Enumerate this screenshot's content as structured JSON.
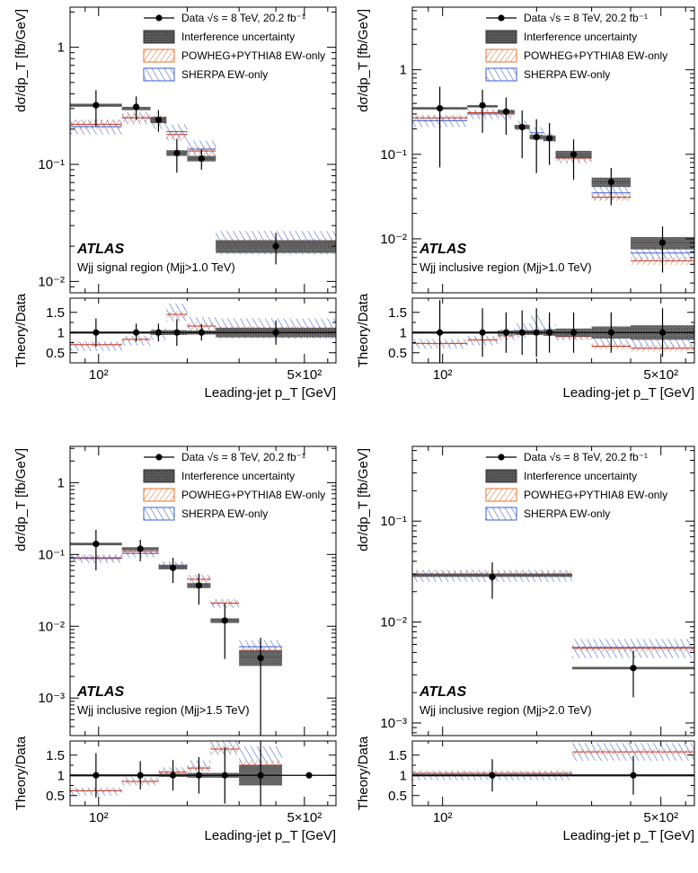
{
  "chart_data": [
    {
      "type": "histogram",
      "panel": "top-left",
      "ylabel": "dσ/dp_T [fb/GeV]",
      "xlabel": "Leading-jet p_T [GeV]",
      "ratio_ylabel": "Theory/Data",
      "xlim": [
        80,
        640
      ],
      "ylim": [
        0.008,
        2.2
      ],
      "ratio_ylim": [
        0.25,
        1.85
      ],
      "y_ticks": [
        {
          "v": 0.01,
          "label": "10⁻²"
        },
        {
          "v": 0.1,
          "label": "10⁻¹"
        },
        {
          "v": 1,
          "label": "1"
        }
      ],
      "ratio_ticks": [
        {
          "v": 0.5,
          "label": "0.5"
        },
        {
          "v": 1,
          "label": "1"
        },
        {
          "v": 1.5,
          "label": "1.5"
        }
      ],
      "x_ticks": [
        {
          "v": 100,
          "label": "10²"
        },
        {
          "v": 500,
          "label": "5×10²"
        }
      ],
      "atlas": "ATLAS",
      "region": "Wjj signal region (Mjj>1.0 TeV)",
      "legend": [
        {
          "name": "Data √s = 8 TeV, 20.2 fb⁻¹",
          "kind": "data"
        },
        {
          "name": "Interference uncertainty",
          "kind": "interference",
          "color": "#333333"
        },
        {
          "name": "POWHEG+PYTHIA8 EW-only",
          "kind": "powheg",
          "color": "#e8702a"
        },
        {
          "name": "SHERPA EW-only",
          "kind": "sherpa",
          "color": "#3a5fcd"
        }
      ],
      "bins": [
        80,
        120,
        150,
        170,
        200,
        250,
        640
      ],
      "data": [
        0.32,
        0.31,
        0.24,
        0.125,
        0.112,
        0.02
      ],
      "data_err": [
        0.11,
        0.07,
        0.05,
        0.04,
        0.022,
        0.006
      ],
      "interference": [
        0.32,
        0.3,
        0.24,
        0.125,
        0.112,
        0.02
      ],
      "interference_err": [
        0.01,
        0.01,
        0.015,
        0.007,
        0.006,
        0.0025
      ],
      "powheg": [
        0.22,
        0.25,
        0.24,
        0.18,
        0.13,
        0.021
      ],
      "powheg_err": [
        0.02,
        0.02,
        0.02,
        0.015,
        0.012,
        0.002
      ],
      "sherpa": [
        0.21,
        0.25,
        0.23,
        0.19,
        0.135,
        0.022
      ],
      "sherpa_err": [
        0.03,
        0.03,
        0.03,
        0.03,
        0.025,
        0.005
      ],
      "ratio_data_err": [
        0.35,
        0.22,
        0.22,
        0.33,
        0.2,
        0.3
      ],
      "ratio_interf_err": [
        0.03,
        0.03,
        0.06,
        0.06,
        0.05,
        0.12
      ],
      "ratio_powheg": [
        0.7,
        0.83,
        1.0,
        1.45,
        1.16,
        1.05
      ],
      "ratio_powheg_err": [
        0.05,
        0.05,
        0.06,
        0.08,
        0.08,
        0.1
      ],
      "ratio_sherpa": [
        0.66,
        0.8,
        0.96,
        1.5,
        1.2,
        1.1
      ],
      "ratio_sherpa_err": [
        0.12,
        0.12,
        0.14,
        0.22,
        0.18,
        0.25
      ]
    },
    {
      "type": "histogram",
      "panel": "top-right",
      "ylabel": "dσ/dp_T [fb/GeV]",
      "xlabel": "Leading-jet p_T [GeV]",
      "ratio_ylabel": "Theory/Data",
      "xlim": [
        80,
        640
      ],
      "ylim": [
        0.0023,
        5.5
      ],
      "ratio_ylim": [
        0.25,
        1.85
      ],
      "y_ticks": [
        {
          "v": 0.01,
          "label": "10⁻²"
        },
        {
          "v": 0.1,
          "label": "10⁻¹"
        },
        {
          "v": 1,
          "label": "1"
        }
      ],
      "ratio_ticks": [
        {
          "v": 0.5,
          "label": "0.5"
        },
        {
          "v": 1,
          "label": "1"
        },
        {
          "v": 1.5,
          "label": "1.5"
        }
      ],
      "x_ticks": [
        {
          "v": 100,
          "label": "10²"
        },
        {
          "v": 500,
          "label": "5×10²"
        }
      ],
      "atlas": "ATLAS",
      "region": "Wjj inclusive region (Mjj>1.0 TeV)",
      "legend": [
        {
          "name": "Data √s = 8 TeV, 20.2 fb⁻¹",
          "kind": "data"
        },
        {
          "name": "Interference uncertainty",
          "kind": "interference",
          "color": "#333333"
        },
        {
          "name": "POWHEG+PYTHIA8 EW-only",
          "kind": "powheg",
          "color": "#e8702a"
        },
        {
          "name": "SHERPA EW-only",
          "kind": "sherpa",
          "color": "#3a5fcd"
        }
      ],
      "bins": [
        80,
        120,
        150,
        170,
        190,
        210,
        230,
        300,
        400,
        640
      ],
      "data": [
        0.35,
        0.38,
        0.32,
        0.21,
        0.16,
        0.155,
        0.1,
        0.047,
        0.009
      ],
      "data_err": [
        0.28,
        0.2,
        0.15,
        0.12,
        0.1,
        0.08,
        0.05,
        0.022,
        0.005
      ],
      "interference": [
        0.35,
        0.37,
        0.32,
        0.21,
        0.16,
        0.155,
        0.1,
        0.047,
        0.009
      ],
      "interference_err": [
        0.012,
        0.012,
        0.015,
        0.012,
        0.01,
        0.012,
        0.01,
        0.006,
        0.0015
      ],
      "powheg": [
        0.27,
        0.31,
        0.3,
        0.21,
        0.16,
        0.16,
        0.09,
        0.031,
        0.0055
      ],
      "powheg_err": [
        0.02,
        0.02,
        0.02,
        0.015,
        0.012,
        0.012,
        0.007,
        0.003,
        0.0006
      ],
      "sherpa": [
        0.25,
        0.3,
        0.3,
        0.22,
        0.18,
        0.16,
        0.093,
        0.035,
        0.0068
      ],
      "sherpa_err": [
        0.04,
        0.04,
        0.04,
        0.03,
        0.03,
        0.025,
        0.015,
        0.006,
        0.0012
      ],
      "ratio_data_err": [
        0.8,
        0.6,
        0.5,
        0.55,
        0.6,
        0.5,
        0.5,
        0.5,
        0.6
      ],
      "ratio_interf_err": [
        0.03,
        0.03,
        0.05,
        0.06,
        0.06,
        0.08,
        0.1,
        0.15,
        0.18
      ],
      "ratio_powheg": [
        0.73,
        0.82,
        0.92,
        1.0,
        1.0,
        1.0,
        0.9,
        0.66,
        0.61
      ],
      "ratio_powheg_err": [
        0.05,
        0.05,
        0.06,
        0.06,
        0.06,
        0.07,
        0.07,
        0.07,
        0.08
      ],
      "ratio_sherpa": [
        0.72,
        0.8,
        0.95,
        1.05,
        1.2,
        1.05,
        0.93,
        0.75,
        0.75
      ],
      "ratio_sherpa_err": [
        0.12,
        0.12,
        0.14,
        0.18,
        0.22,
        0.15,
        0.12,
        0.12,
        0.15
      ]
    },
    {
      "type": "histogram",
      "panel": "bottom-left",
      "ylabel": "dσ/dp_T [fb/GeV]",
      "xlabel": "Leading-jet p_T [GeV]",
      "ratio_ylabel": "Theory/Data",
      "xlim": [
        80,
        640
      ],
      "ylim": [
        0.0003,
        3.2
      ],
      "ratio_ylim": [
        0.25,
        1.85
      ],
      "y_ticks": [
        {
          "v": 0.001,
          "label": "10⁻³"
        },
        {
          "v": 0.01,
          "label": "10⁻²"
        },
        {
          "v": 0.1,
          "label": "10⁻¹"
        },
        {
          "v": 1,
          "label": "1"
        }
      ],
      "ratio_ticks": [
        {
          "v": 0.5,
          "label": "0.5"
        },
        {
          "v": 1,
          "label": "1"
        },
        {
          "v": 1.5,
          "label": "1.5"
        }
      ],
      "x_ticks": [
        {
          "v": 100,
          "label": "10²"
        },
        {
          "v": 500,
          "label": "5×10²"
        }
      ],
      "atlas": "ATLAS",
      "region": "Wjj inclusive region (Mjj>1.5 TeV)",
      "legend": [
        {
          "name": "Data √s = 8 TeV, 20.2 fb⁻¹",
          "kind": "data"
        },
        {
          "name": "Interference uncertainty",
          "kind": "interference",
          "color": "#333333"
        },
        {
          "name": "POWHEG+PYTHIA8 EW-only",
          "kind": "powheg",
          "color": "#e8702a"
        },
        {
          "name": "SHERPA EW-only",
          "kind": "sherpa",
          "color": "#3a5fcd"
        }
      ],
      "bins": [
        80,
        120,
        160,
        200,
        240,
        300,
        420,
        640
      ],
      "data": [
        0.14,
        0.12,
        0.065,
        0.037,
        0.012,
        0.0036
      ],
      "data_err": [
        0.08,
        0.04,
        0.025,
        0.017,
        0.0085,
        0.0033
      ],
      "interference": [
        0.14,
        0.12,
        0.066,
        0.037,
        0.012,
        0.0037
      ],
      "interference_err": [
        0.006,
        0.006,
        0.004,
        0.003,
        0.0009,
        0.0009
      ],
      "powheg": [
        0.09,
        0.11,
        0.07,
        0.045,
        0.021,
        0.0046
      ],
      "powheg_err": [
        0.008,
        0.008,
        0.006,
        0.004,
        0.002,
        0.0005
      ],
      "sherpa": [
        0.088,
        0.103,
        0.071,
        0.045,
        0.021,
        0.0052
      ],
      "sherpa_err": [
        0.012,
        0.012,
        0.009,
        0.007,
        0.003,
        0.0012
      ],
      "ratio_data_err": [
        0.55,
        0.35,
        0.38,
        0.45,
        0.7,
        0.95
      ],
      "ratio_interf_err": [
        0.03,
        0.03,
        0.04,
        0.06,
        0.06,
        0.25
      ],
      "ratio_powheg": [
        0.62,
        0.85,
        1.08,
        1.18,
        1.65,
        1.25
      ],
      "ratio_powheg_err": [
        0.04,
        0.05,
        0.06,
        0.07,
        0.09,
        0.12
      ],
      "ratio_sherpa": [
        0.6,
        0.85,
        1.08,
        1.23,
        1.68,
        1.42
      ],
      "ratio_sherpa_err": [
        0.1,
        0.1,
        0.12,
        0.14,
        0.17,
        0.3
      ]
    },
    {
      "type": "histogram",
      "panel": "bottom-right",
      "ylabel": "dσ/dp_T [fb/GeV]",
      "xlabel": "Leading-jet p_T [GeV]",
      "ratio_ylabel": "Theory/Data",
      "xlim": [
        80,
        640
      ],
      "ylim": [
        0.00075,
        0.55
      ],
      "ratio_ylim": [
        0.25,
        1.85
      ],
      "y_ticks": [
        {
          "v": 0.001,
          "label": "10⁻³"
        },
        {
          "v": 0.01,
          "label": "10⁻²"
        },
        {
          "v": 0.1,
          "label": "10⁻¹"
        }
      ],
      "ratio_ticks": [
        {
          "v": 0.5,
          "label": "0.5"
        },
        {
          "v": 1,
          "label": "1"
        },
        {
          "v": 1.5,
          "label": "1.5"
        }
      ],
      "x_ticks": [
        {
          "v": 100,
          "label": "10²"
        },
        {
          "v": 500,
          "label": "5×10²"
        }
      ],
      "atlas": "ATLAS",
      "region": "Wjj inclusive region (Mjj>2.0 TeV)",
      "legend": [
        {
          "name": "Data √s = 8 TeV, 20.2 fb⁻¹",
          "kind": "data"
        },
        {
          "name": "Interference uncertainty",
          "kind": "interference",
          "color": "#333333"
        },
        {
          "name": "POWHEG+PYTHIA8 EW-only",
          "kind": "powheg",
          "color": "#e8702a"
        },
        {
          "name": "SHERPA EW-only",
          "kind": "sherpa",
          "color": "#3a5fcd"
        }
      ],
      "bins": [
        80,
        260,
        640
      ],
      "data": [
        0.028,
        0.0035
      ],
      "data_err": [
        0.011,
        0.0017
      ],
      "interference": [
        0.029,
        0.0035
      ],
      "interference_err": [
        0.001,
        0.0001
      ],
      "powheg": [
        0.03,
        0.0055
      ],
      "powheg_err": [
        0.002,
        0.0004
      ],
      "sherpa": [
        0.029,
        0.0056
      ],
      "sherpa_err": [
        0.004,
        0.0012
      ],
      "ratio_data_err": [
        0.4,
        0.48
      ],
      "ratio_interf_err": [
        0.03,
        0.03
      ],
      "ratio_powheg": [
        1.05,
        1.58
      ],
      "ratio_powheg_err": [
        0.05,
        0.07
      ],
      "ratio_sherpa": [
        1.0,
        1.58
      ],
      "ratio_sherpa_err": [
        0.12,
        0.22
      ]
    }
  ]
}
